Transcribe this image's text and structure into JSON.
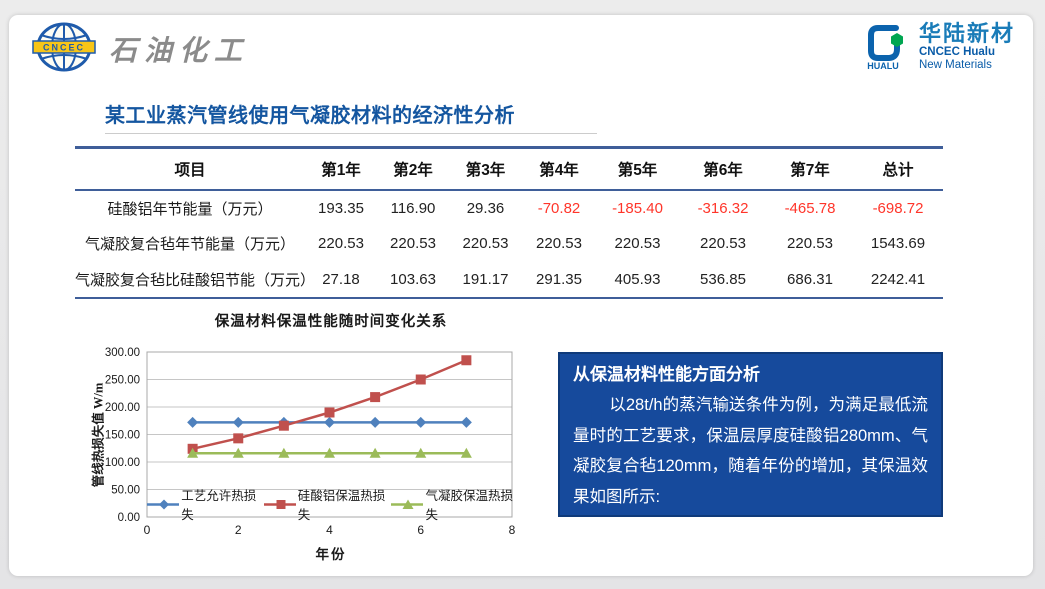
{
  "header": {
    "left_logo": {
      "emblem_text": "CNCEC",
      "brand_text": "石油化工"
    },
    "right_logo": {
      "mark_text": "HUALU",
      "brand_cn": "华陆新材",
      "brand_en_line1": "CNCEC Hualu",
      "brand_en_line2": "New Materials"
    }
  },
  "title": "某工业蒸汽管线使用气凝胶材料的经济性分析",
  "table": {
    "columns": [
      "项目",
      "第1年",
      "第2年",
      "第3年",
      "第4年",
      "第5年",
      "第6年",
      "第7年",
      "总计"
    ],
    "rows": [
      {
        "label": "硅酸铝年节能量（万元）",
        "values": [
          "193.35",
          "116.90",
          "29.36",
          "-70.82",
          "-185.40",
          "-316.32",
          "-465.78",
          "-698.72"
        ]
      },
      {
        "label": "气凝胶复合毡年节能量（万元）",
        "values": [
          "220.53",
          "220.53",
          "220.53",
          "220.53",
          "220.53",
          "220.53",
          "220.53",
          "1543.69"
        ]
      },
      {
        "label": "气凝胶复合毡比硅酸铝节能（万元）",
        "values": [
          "27.18",
          "103.63",
          "191.17",
          "291.35",
          "405.93",
          "536.85",
          "686.31",
          "2242.41"
        ]
      }
    ],
    "negative_color": "#ff352a"
  },
  "chart_data": {
    "type": "line",
    "title": "保温材料保温性能随时间变化关系",
    "xlabel": "年份",
    "ylabel": "管线热损失值 W/m",
    "x": [
      1,
      2,
      3,
      4,
      5,
      6,
      7
    ],
    "xlim": [
      0,
      8
    ],
    "xticks": [
      "0",
      "2",
      "4",
      "6",
      "8"
    ],
    "ylim": [
      0,
      300
    ],
    "yticks": [
      "0.00",
      "50.00",
      "100.00",
      "150.00",
      "200.00",
      "250.00",
      "300.00"
    ],
    "grid": true,
    "legend_position": "bottom-inside",
    "series": [
      {
        "name": "工艺允许热损失",
        "color": "#4f81bd",
        "marker": "diamond",
        "values": [
          172,
          172,
          172,
          172,
          172,
          172,
          172
        ]
      },
      {
        "name": "硅酸铝保温热损失",
        "color": "#c0504d",
        "marker": "square",
        "values": [
          124,
          143,
          166,
          190,
          218,
          250,
          285
        ]
      },
      {
        "name": "气凝胶保温热损失",
        "color": "#9bbb59",
        "marker": "triangle",
        "values": [
          116,
          116,
          116,
          116,
          116,
          116,
          116
        ]
      }
    ]
  },
  "analysis_box": {
    "heading": "从保温材料性能方面分析",
    "body": "以28t/h的蒸汽输送条件为例，为满足最低流量时的工艺要求，保温层厚度硅酸铝280mm、气凝胶复合毡120mm，随着年份的增加，其保温效果如图所示:"
  },
  "colors": {
    "title_blue": "#1456a0",
    "table_border": "#3f5e99",
    "analysis_bg": "#164a9c",
    "analysis_border": "#0f3a7a",
    "series_blue": "#4f81bd",
    "series_red": "#c0504d",
    "series_green": "#9bbb59"
  }
}
